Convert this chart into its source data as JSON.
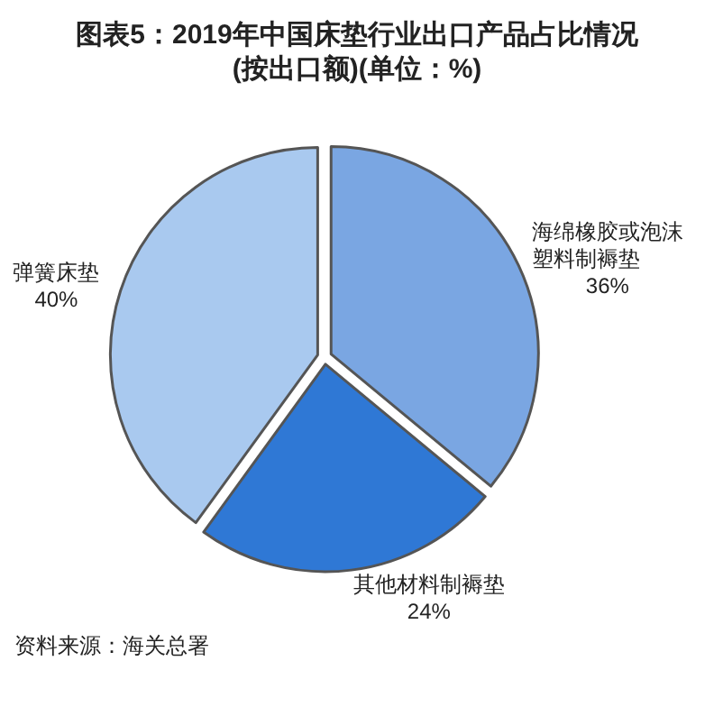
{
  "chart_data": {
    "type": "pie",
    "title": "图表5：2019年中国床垫行业出口产品占比情况(按出口额)(单位：%)",
    "categories": [
      "海绵橡胶或泡沫塑料制褥垫",
      "其他材料制褥垫",
      "弹簧床垫"
    ],
    "values": [
      36,
      24,
      40
    ],
    "colors": [
      "#7aa6e2",
      "#2f78d5",
      "#a9c9ef"
    ],
    "value_labels": [
      "36%",
      "24%",
      "40%"
    ],
    "annotations": [
      "资料来源：海关总署"
    ]
  }
}
